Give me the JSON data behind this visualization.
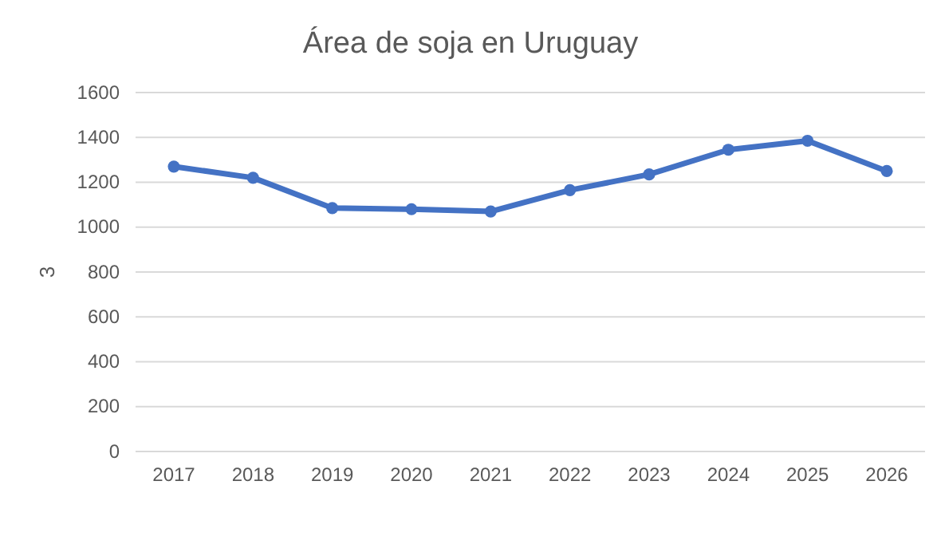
{
  "chart_data": {
    "type": "line",
    "title": "Área de soja en Uruguay",
    "ylabel": "3",
    "categories": [
      "2017",
      "2018",
      "2019",
      "2020",
      "2021",
      "2022",
      "2023",
      "2024",
      "2025",
      "2026"
    ],
    "series": [
      {
        "color": "#4472c4",
        "values": [
          1270,
          1220,
          1085,
          1080,
          1070,
          1165,
          1235,
          1345,
          1385,
          1250
        ]
      }
    ],
    "ylim": [
      0,
      1600
    ],
    "yticks": [
      0,
      200,
      400,
      600,
      800,
      1000,
      1200,
      1400,
      1600
    ],
    "grid": "y",
    "marker": "circle",
    "line_style": "solid"
  }
}
